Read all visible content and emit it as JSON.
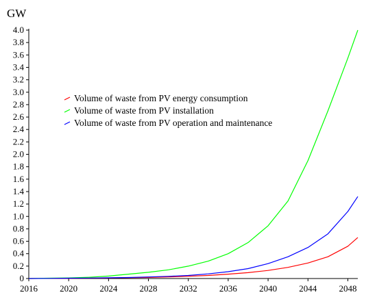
{
  "chart_data": {
    "type": "line",
    "ylabel": "GW",
    "xlim": [
      2016,
      2049
    ],
    "ylim": [
      0,
      4.0
    ],
    "x_ticks": [
      2016,
      2020,
      2024,
      2028,
      2032,
      2036,
      2040,
      2044,
      2048
    ],
    "y_ticks": [
      0,
      0.2,
      0.4,
      0.6,
      0.8,
      1.0,
      1.2,
      1.4,
      1.6,
      1.8,
      2.0,
      2.2,
      2.4,
      2.6,
      2.8,
      3.0,
      3.2,
      3.4,
      3.6,
      3.8,
      4.0
    ],
    "y_tick_labels": [
      "0",
      "0.2",
      "0.4",
      "0.6",
      "0.8",
      "1.0",
      "1.2",
      "1.4",
      "1.6",
      "1.8",
      "2.0",
      "2.2",
      "2.4",
      "2.6",
      "2.8",
      "3.0",
      "3.2",
      "3.4",
      "3.6",
      "3.8",
      "4.0"
    ],
    "legend_position": "center-left",
    "grid": false,
    "x": [
      2016,
      2018,
      2020,
      2022,
      2024,
      2026,
      2028,
      2030,
      2032,
      2034,
      2036,
      2038,
      2040,
      2042,
      2044,
      2046,
      2048,
      2049
    ],
    "series": [
      {
        "name": "Volume of waste from PV energy consumption",
        "color": "#ff0000",
        "values": [
          0.0,
          0.002,
          0.004,
          0.006,
          0.009,
          0.013,
          0.018,
          0.025,
          0.036,
          0.05,
          0.07,
          0.095,
          0.13,
          0.18,
          0.25,
          0.35,
          0.52,
          0.66
        ]
      },
      {
        "name": "Volume of waste from PV installation",
        "color": "#00ff00",
        "values": [
          0.0,
          0.005,
          0.01,
          0.02,
          0.04,
          0.07,
          0.1,
          0.14,
          0.2,
          0.28,
          0.4,
          0.58,
          0.85,
          1.25,
          1.9,
          2.7,
          3.55,
          4.0
        ]
      },
      {
        "name": "Volume of waste from PV operation and maintenance",
        "color": "#0000ff",
        "values": [
          0.0,
          0.002,
          0.005,
          0.008,
          0.012,
          0.017,
          0.025,
          0.035,
          0.05,
          0.075,
          0.11,
          0.16,
          0.24,
          0.35,
          0.5,
          0.72,
          1.08,
          1.32
        ]
      }
    ]
  }
}
